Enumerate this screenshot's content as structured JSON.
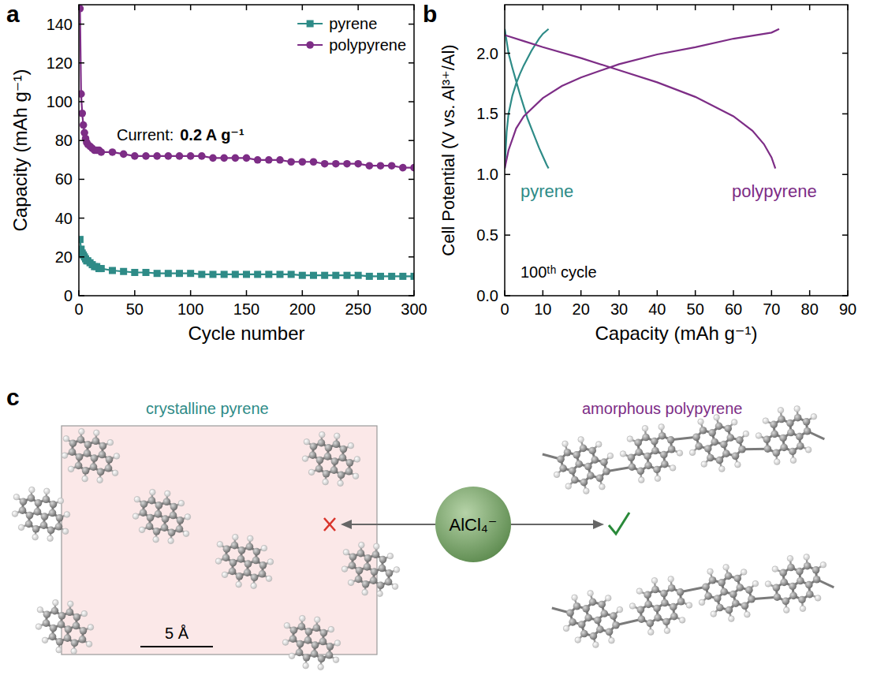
{
  "panel_letters": [
    "a",
    "b",
    "c"
  ],
  "chart_data": [
    {
      "type": "line",
      "x_label": "Cycle number",
      "y_label": "Capacity (mAh g⁻¹)",
      "xlim": [
        0,
        300
      ],
      "xticks": [
        0,
        50,
        100,
        150,
        200,
        250,
        300
      ],
      "ylim": [
        0,
        150
      ],
      "yticks": [
        0,
        20,
        40,
        60,
        80,
        100,
        120,
        140
      ],
      "grid": false,
      "legend": "upper right",
      "annotations": [
        {
          "text": "Current:",
          "emphasis": "0.2 A g⁻¹"
        }
      ],
      "x": [
        1,
        2,
        3,
        4,
        5,
        6,
        7,
        8,
        10,
        12,
        14,
        16,
        18,
        20,
        30,
        40,
        50,
        60,
        70,
        80,
        90,
        100,
        110,
        120,
        130,
        140,
        150,
        160,
        170,
        180,
        190,
        200,
        210,
        220,
        230,
        240,
        250,
        260,
        270,
        280,
        290,
        300
      ],
      "series": [
        {
          "name": "pyrene",
          "color": "#2e8b87",
          "marker": "square",
          "line_style": "solid",
          "values": [
            29,
            24,
            22,
            21,
            20,
            19,
            18,
            18,
            17,
            16,
            15,
            15,
            14,
            14,
            13,
            12.5,
            12,
            12,
            11.5,
            11.5,
            11.5,
            11.5,
            11,
            11,
            11,
            11,
            11,
            11,
            11,
            11,
            11,
            10.5,
            10.5,
            10.5,
            10.5,
            10.5,
            10.5,
            10,
            10,
            10,
            10,
            10
          ]
        },
        {
          "name": "polypyrene",
          "color": "#7d2d86",
          "marker": "circle",
          "line_style": "solid",
          "values": [
            148,
            104,
            94,
            88,
            84,
            81,
            79,
            78,
            77,
            76,
            75,
            75,
            75,
            74,
            74,
            73,
            72,
            72,
            72,
            72,
            72,
            72,
            72,
            71,
            71,
            71,
            71,
            70,
            70,
            70,
            69,
            69,
            69,
            68,
            68,
            68,
            68,
            67,
            67,
            67,
            66,
            66
          ]
        }
      ]
    },
    {
      "type": "line",
      "x_label": "Capacity (mAh g⁻¹)",
      "y_label": "Cell Potential (V vs. Al³⁺/Al)",
      "xlim": [
        0,
        90
      ],
      "xticks": [
        0,
        10,
        20,
        30,
        40,
        50,
        60,
        70,
        80,
        90
      ],
      "ylim": [
        0,
        2.4
      ],
      "yticks": [
        {
          "value": 0,
          "label": "0.0"
        },
        {
          "value": 0.5,
          "label": "0.5"
        },
        {
          "value": 1,
          "label": "1.0"
        },
        {
          "value": 1.5,
          "label": "1.5"
        },
        {
          "value": 2,
          "label": "2.0"
        }
      ],
      "grid": false,
      "annotations": [
        {
          "text": "100ᵗʰ cycle"
        }
      ],
      "series": [
        {
          "name": "pyrene",
          "color": "#2e8b87",
          "line_style": "solid",
          "x": [
            0,
            0.5,
            1,
            2,
            3,
            4,
            5,
            6,
            7,
            8,
            9,
            10,
            11.5,
            null,
            0,
            0.5,
            1,
            2,
            3,
            4,
            5,
            6,
            7,
            8,
            9,
            10,
            11,
            11.5
          ],
          "values": [
            1.05,
            1.35,
            1.5,
            1.65,
            1.75,
            1.83,
            1.9,
            1.96,
            2.02,
            2.07,
            2.12,
            2.16,
            2.2,
            null,
            2.2,
            2.1,
            2.0,
            1.88,
            1.77,
            1.66,
            1.56,
            1.46,
            1.38,
            1.3,
            1.22,
            1.15,
            1.08,
            1.05
          ]
        },
        {
          "name": "polypyrene",
          "color": "#7d2d86",
          "line_style": "solid",
          "x": [
            0,
            1,
            3,
            5,
            10,
            15,
            20,
            30,
            40,
            50,
            60,
            70,
            72,
            null,
            0,
            5,
            10,
            20,
            30,
            40,
            50,
            60,
            65,
            68,
            70,
            71
          ],
          "values": [
            1.05,
            1.2,
            1.38,
            1.48,
            1.63,
            1.73,
            1.8,
            1.91,
            1.99,
            2.05,
            2.12,
            2.17,
            2.2,
            null,
            2.15,
            2.1,
            2.05,
            1.96,
            1.86,
            1.76,
            1.64,
            1.48,
            1.36,
            1.25,
            1.14,
            1.05
          ]
        }
      ]
    }
  ],
  "diagram": {
    "crystalline": "crystalline pyrene",
    "amorphous": "amorphous polypyrene",
    "ion": "AlCl₄⁻",
    "scale_bar": "5 Å"
  }
}
